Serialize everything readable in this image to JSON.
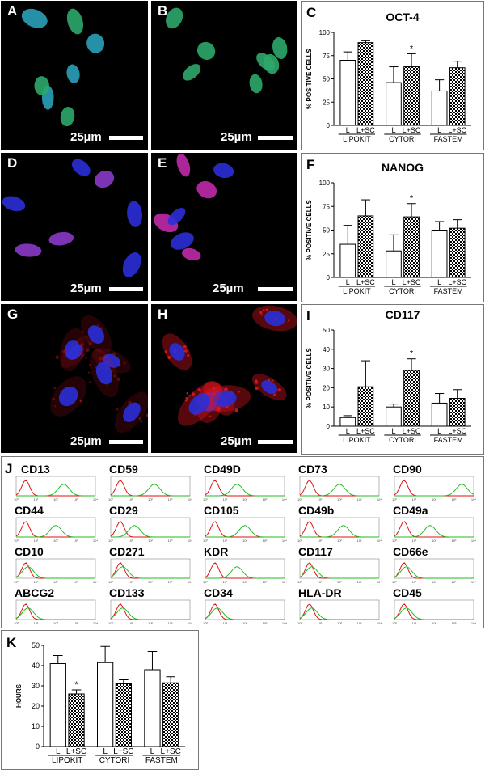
{
  "micro_panels": [
    {
      "label": "A",
      "scale": "25µm",
      "theme": "green-dim"
    },
    {
      "label": "B",
      "scale": "25µm",
      "theme": "green-bright"
    },
    {
      "label": "D",
      "scale": "25µm",
      "theme": "blue-dim"
    },
    {
      "label": "E",
      "scale": "25µm",
      "theme": "blue-pink"
    },
    {
      "label": "G",
      "scale": "25µm",
      "theme": "red-dim"
    },
    {
      "label": "H",
      "scale": "25µm",
      "theme": "red-bright"
    }
  ],
  "colors": {
    "green": "#2ea86a",
    "blue": "#2a2fd8",
    "pink": "#c02aa8",
    "red": "#e2161e",
    "flow_red": "#e01010",
    "flow_green": "#22bb22"
  },
  "flow_panel": {
    "label": "J",
    "markers": [
      "CD13",
      "CD59",
      "CD49D",
      "CD73",
      "CD90",
      "CD44",
      "CD29",
      "CD105",
      "CD49b",
      "CD49a",
      "CD10",
      "CD271",
      "KDR",
      "CD117",
      "CD66e",
      "ABCG2",
      "CD133",
      "CD34",
      "HLA-DR",
      "CD45"
    ],
    "axis_ticks": [
      "10⁰",
      "10¹",
      "10²",
      "10³",
      "10⁴"
    ]
  },
  "chart_data": [
    {
      "panel": "C",
      "type": "bar",
      "title": "OCT-4",
      "ylabel": "% POSITIVE CELLS",
      "ylim": [
        0,
        100
      ],
      "yticks": [
        0,
        25,
        50,
        75,
        100
      ],
      "bar_labels": [
        "L",
        "L+SC",
        "L",
        "L+SC",
        "L",
        "L+SC"
      ],
      "groups": [
        "LIPOKIT",
        "CYTORI",
        "FASTEM"
      ],
      "series": [
        {
          "name": "L",
          "values": [
            70,
            46,
            37
          ],
          "errors": [
            9,
            17,
            12
          ]
        },
        {
          "name": "L+SC",
          "values": [
            89,
            63,
            62
          ],
          "errors": [
            2,
            14,
            7
          ]
        }
      ],
      "significant": [
        "",
        "*",
        ""
      ]
    },
    {
      "panel": "F",
      "type": "bar",
      "title": "NANOG",
      "ylabel": "% POSITIVE CELLS",
      "ylim": [
        0,
        100
      ],
      "yticks": [
        0,
        25,
        50,
        75,
        100
      ],
      "bar_labels": [
        "L",
        "L+SC",
        "L",
        "L+SC",
        "L",
        "L+SC"
      ],
      "groups": [
        "LIPOKIT",
        "CYTORI",
        "FASTEM"
      ],
      "series": [
        {
          "name": "L",
          "values": [
            35,
            28,
            50
          ],
          "errors": [
            20,
            17,
            9
          ]
        },
        {
          "name": "L+SC",
          "values": [
            65,
            64,
            52
          ],
          "errors": [
            17,
            14,
            9
          ]
        }
      ],
      "significant": [
        "",
        "*",
        ""
      ]
    },
    {
      "panel": "I",
      "type": "bar",
      "title": "CD117",
      "ylabel": "% POSITIVE CELLS",
      "ylim": [
        0,
        50
      ],
      "yticks": [
        0,
        10,
        20,
        30,
        40,
        50
      ],
      "bar_labels": [
        "L",
        "L+SC",
        "L",
        "L+SC",
        "L",
        "L+SC"
      ],
      "groups": [
        "LIPOKIT",
        "CYTORI",
        "FASTEM"
      ],
      "series": [
        {
          "name": "L",
          "values": [
            4.5,
            10,
            12
          ],
          "errors": [
            1,
            1.5,
            5
          ]
        },
        {
          "name": "L+SC",
          "values": [
            20.5,
            29,
            14.5
          ],
          "errors": [
            13.5,
            6,
            4.5
          ]
        }
      ],
      "significant": [
        "",
        "*",
        ""
      ]
    },
    {
      "panel": "K",
      "type": "bar",
      "title": "",
      "ylabel": "HOURS",
      "ylim": [
        0,
        50
      ],
      "yticks": [
        0,
        10,
        20,
        30,
        40,
        50
      ],
      "bar_labels": [
        "L",
        "L+SC",
        "L",
        "L+SC",
        "L",
        "L+SC"
      ],
      "groups": [
        "LIPOKIT",
        "CYTORI",
        "FASTEM"
      ],
      "series": [
        {
          "name": "L",
          "values": [
            41,
            41.5,
            38
          ],
          "errors": [
            4,
            8,
            9
          ]
        },
        {
          "name": "L+SC",
          "values": [
            26,
            31,
            31.5
          ],
          "errors": [
            2,
            2,
            3
          ]
        }
      ],
      "significant": [
        "*",
        "",
        ""
      ]
    }
  ]
}
